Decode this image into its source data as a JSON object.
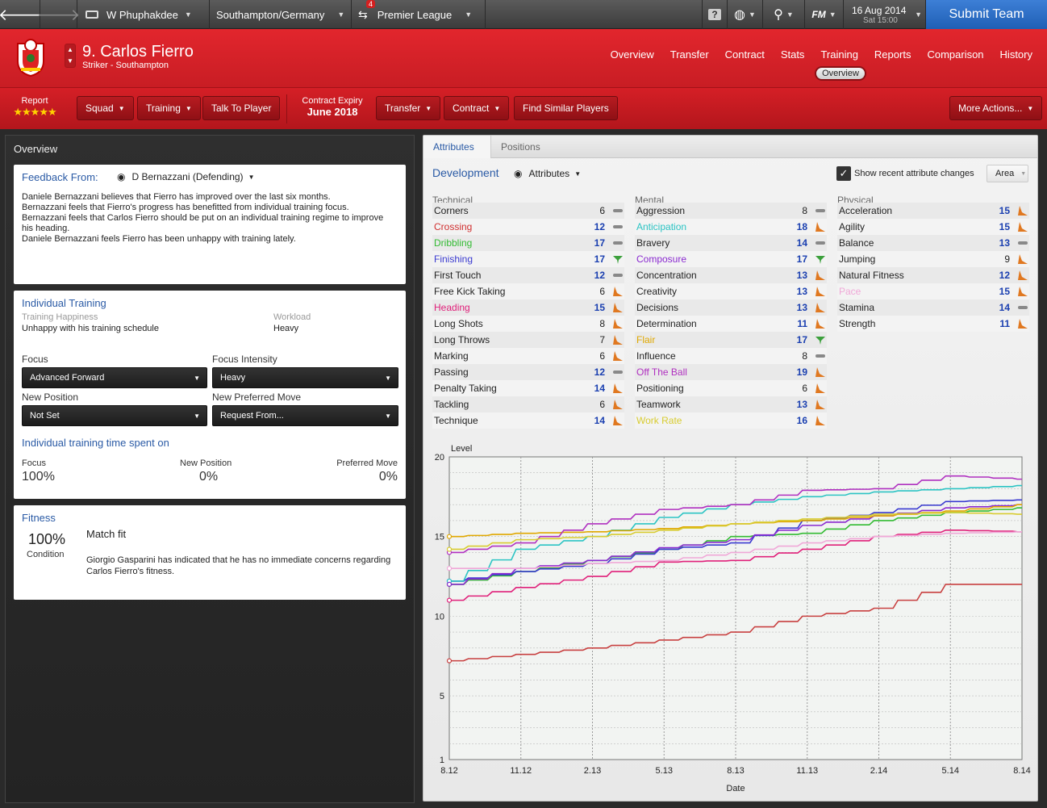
{
  "topbar": {
    "manager": "W Phuphakdee",
    "team_nation": "Southampton/Germany",
    "inbox_count": "4",
    "competition": "Premier League",
    "date": "16 Aug 2014",
    "time": "Sat 15:00",
    "fm_label": "FM",
    "submit": "Submit Team"
  },
  "player": {
    "name": "9. Carlos Fierro",
    "subtitle": "Striker - Southampton"
  },
  "nav": [
    "Overview",
    "Transfer",
    "Contract",
    "Stats",
    "Training",
    "Reports",
    "Comparison",
    "History"
  ],
  "subnav": "Overview",
  "actions": {
    "report_label": "Report",
    "stars": "★★★★★",
    "squad": "Squad",
    "training": "Training",
    "talk": "Talk To Player",
    "contract_expiry_label": "Contract Expiry",
    "contract_expiry": "June 2018",
    "transfer": "Transfer",
    "contract": "Contract",
    "find_similar": "Find Similar Players",
    "more": "More Actions..."
  },
  "overview": {
    "title": "Overview",
    "feedback": {
      "label": "Feedback From:",
      "coach": "D Bernazzani (Defending)",
      "lines": [
        "Daniele Bernazzani believes that Fierro has improved over the last six months.",
        "Bernazzani feels that Fierro's progress has benefitted from individual training focus.",
        "Bernazzani feels that Carlos Fierro should be put on an individual training regime to improve his heading.",
        "Daniele Bernazzani feels Fierro has been unhappy with training lately."
      ]
    },
    "training": {
      "title": "Individual Training",
      "happiness_label": "Training Happiness",
      "happiness": "Unhappy with his training schedule",
      "workload_label": "Workload",
      "workload": "Heavy",
      "focus_label": "Focus",
      "focus": "Advanced Forward",
      "intensity_label": "Focus Intensity",
      "intensity": "Heavy",
      "newpos_label": "New Position",
      "newpos": "Not Set",
      "newmove_label": "New Preferred Move",
      "newmove": "Request From...",
      "time_title": "Individual training time spent on",
      "t_focus_label": "Focus",
      "t_focus": "100%",
      "t_newpos_label": "New Position",
      "t_newpos": "0%",
      "t_pref_label": "Preferred Move",
      "t_pref": "0%"
    },
    "fitness": {
      "title": "Fitness",
      "pct": "100%",
      "cond_label": "Condition",
      "status": "Match fit",
      "note": "Giorgio Gasparini has indicated that he has no immediate concerns regarding Carlos Fierro's fitness."
    }
  },
  "right": {
    "tabs": [
      "Attributes",
      "Positions"
    ],
    "dev_label": "Development",
    "attr_dropdown": "Attributes",
    "show_changes": "Show recent attribute changes",
    "area": "Area",
    "columns": [
      {
        "title": "Technical",
        "items": [
          {
            "name": "Corners",
            "value": "6",
            "trend": "flat",
            "color": "#222"
          },
          {
            "name": "Crossing",
            "value": "12",
            "trend": "flat",
            "color": "#d03030"
          },
          {
            "name": "Dribbling",
            "value": "17",
            "trend": "flat",
            "color": "#33bb33"
          },
          {
            "name": "Finishing",
            "value": "17",
            "trend": "up",
            "color": "#3a3ad0"
          },
          {
            "name": "First Touch",
            "value": "12",
            "trend": "flat",
            "color": "#222"
          },
          {
            "name": "Free Kick Taking",
            "value": "6",
            "trend": "down",
            "color": "#222"
          },
          {
            "name": "Heading",
            "value": "15",
            "trend": "down",
            "color": "#e0207a"
          },
          {
            "name": "Long Shots",
            "value": "8",
            "trend": "down",
            "color": "#222"
          },
          {
            "name": "Long Throws",
            "value": "7",
            "trend": "down",
            "color": "#222"
          },
          {
            "name": "Marking",
            "value": "6",
            "trend": "down",
            "color": "#222"
          },
          {
            "name": "Passing",
            "value": "12",
            "trend": "flat",
            "color": "#222"
          },
          {
            "name": "Penalty Taking",
            "value": "14",
            "trend": "down",
            "color": "#222"
          },
          {
            "name": "Tackling",
            "value": "6",
            "trend": "down",
            "color": "#222"
          },
          {
            "name": "Technique",
            "value": "14",
            "trend": "down",
            "color": "#222"
          }
        ]
      },
      {
        "title": "Mental",
        "items": [
          {
            "name": "Aggression",
            "value": "8",
            "trend": "flat",
            "color": "#222"
          },
          {
            "name": "Anticipation",
            "value": "18",
            "trend": "down",
            "color": "#2cc4c4"
          },
          {
            "name": "Bravery",
            "value": "14",
            "trend": "flat",
            "color": "#222"
          },
          {
            "name": "Composure",
            "value": "17",
            "trend": "up",
            "color": "#8a2ad0"
          },
          {
            "name": "Concentration",
            "value": "13",
            "trend": "down",
            "color": "#222"
          },
          {
            "name": "Creativity",
            "value": "13",
            "trend": "down",
            "color": "#222"
          },
          {
            "name": "Decisions",
            "value": "13",
            "trend": "down",
            "color": "#222"
          },
          {
            "name": "Determination",
            "value": "11",
            "trend": "down",
            "color": "#222"
          },
          {
            "name": "Flair",
            "value": "17",
            "trend": "up",
            "color": "#e0a800"
          },
          {
            "name": "Influence",
            "value": "8",
            "trend": "flat",
            "color": "#222"
          },
          {
            "name": "Off The Ball",
            "value": "19",
            "trend": "down",
            "color": "#b030c0"
          },
          {
            "name": "Positioning",
            "value": "6",
            "trend": "down",
            "color": "#222"
          },
          {
            "name": "Teamwork",
            "value": "13",
            "trend": "down",
            "color": "#222"
          },
          {
            "name": "Work Rate",
            "value": "16",
            "trend": "down",
            "color": "#d8cc30"
          }
        ]
      },
      {
        "title": "Physical",
        "items": [
          {
            "name": "Acceleration",
            "value": "15",
            "trend": "down",
            "color": "#222"
          },
          {
            "name": "Agility",
            "value": "15",
            "trend": "down",
            "color": "#222"
          },
          {
            "name": "Balance",
            "value": "13",
            "trend": "flat",
            "color": "#222"
          },
          {
            "name": "Jumping",
            "value": "9",
            "trend": "down",
            "color": "#222"
          },
          {
            "name": "Natural Fitness",
            "value": "12",
            "trend": "down",
            "color": "#222"
          },
          {
            "name": "Pace",
            "value": "15",
            "trend": "down",
            "color": "#f0a8d8"
          },
          {
            "name": "Stamina",
            "value": "14",
            "trend": "flat",
            "color": "#222"
          },
          {
            "name": "Strength",
            "value": "11",
            "trend": "down",
            "color": "#222"
          }
        ]
      }
    ]
  },
  "chart_data": {
    "type": "line",
    "ylabel": "Level",
    "xlabel": "Date",
    "x": [
      "8.12",
      "11.12",
      "2.13",
      "5.13",
      "8.13",
      "11.13",
      "2.14",
      "5.14",
      "8.14"
    ],
    "ylim": [
      1,
      20
    ],
    "yticks": [
      20,
      15,
      10,
      5,
      1
    ],
    "series": [
      {
        "name": "Crossing",
        "color": "#c84040",
        "values": [
          7.2,
          7.6,
          8.0,
          8.5,
          9.0,
          10.0,
          10.5,
          12.0,
          12.0
        ]
      },
      {
        "name": "Dribbling",
        "color": "#33bb33",
        "values": [
          12.0,
          12.8,
          13.5,
          14.2,
          15.0,
          15.2,
          16.0,
          16.5,
          16.8
        ]
      },
      {
        "name": "Finishing",
        "color": "#3a3ad0",
        "values": [
          12.2,
          12.8,
          13.3,
          14.2,
          14.6,
          16.0,
          16.5,
          17.2,
          17.3
        ]
      },
      {
        "name": "Heading",
        "color": "#e0207a",
        "values": [
          11.0,
          11.8,
          12.5,
          13.4,
          13.5,
          14.2,
          15.0,
          15.4,
          15.3
        ]
      },
      {
        "name": "Anticipation",
        "color": "#2cc4c4",
        "values": [
          12.2,
          14.2,
          15.0,
          16.2,
          17.0,
          17.5,
          17.8,
          18.0,
          18.2
        ]
      },
      {
        "name": "Composure",
        "color": "#8a2ad0",
        "values": [
          12.0,
          13.0,
          13.5,
          14.3,
          14.8,
          15.7,
          16.3,
          16.8,
          17.0
        ]
      },
      {
        "name": "Flair",
        "color": "#e0a800",
        "values": [
          15.0,
          15.2,
          15.3,
          15.5,
          15.8,
          16.0,
          16.3,
          16.6,
          17.0
        ]
      },
      {
        "name": "Off The Ball",
        "color": "#b030c0",
        "values": [
          14.0,
          14.6,
          15.8,
          16.7,
          17.0,
          17.9,
          18.0,
          18.8,
          18.6
        ]
      },
      {
        "name": "Work Rate",
        "color": "#d8cc30",
        "values": [
          14.2,
          14.8,
          15.0,
          15.4,
          15.8,
          16.1,
          16.4,
          16.5,
          16.4
        ]
      },
      {
        "name": "Pace",
        "color": "#f0a8d8",
        "values": [
          13.0,
          13.0,
          13.3,
          13.5,
          14.0,
          14.6,
          15.0,
          15.2,
          15.3
        ]
      }
    ]
  }
}
